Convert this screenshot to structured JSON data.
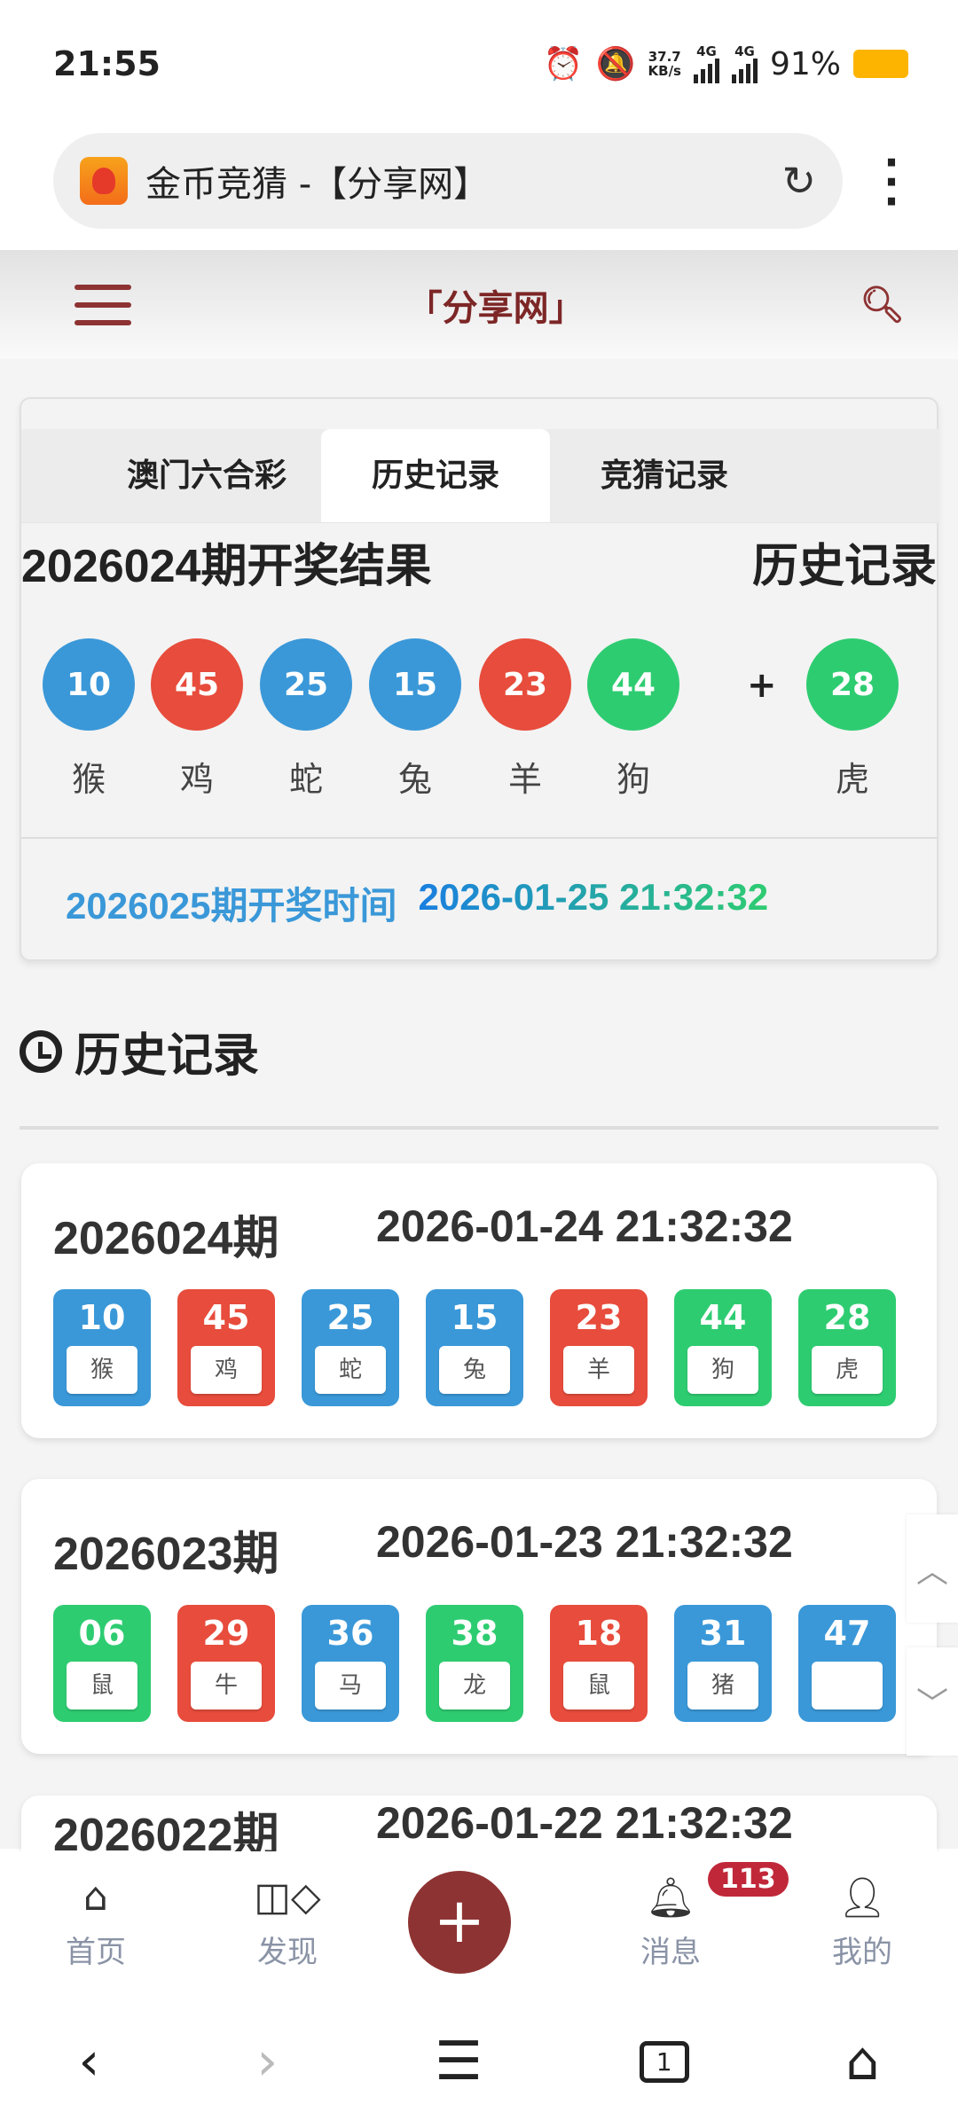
{
  "status": {
    "time": "21:55",
    "net_speed": "37.7",
    "net_unit": "KB/s",
    "sig1": "4G",
    "sig2": "4G",
    "battery": "91%"
  },
  "browser": {
    "title": "金币竞猜 -【分享网】"
  },
  "site": {
    "title": "「分享网」"
  },
  "tabs": [
    {
      "label": "澳门六合彩"
    },
    {
      "label": "历史记录",
      "active": true
    },
    {
      "label": "竞猜记录"
    }
  ],
  "latest": {
    "title": "2026024期开奖结果",
    "history_link": "历史记录",
    "plus": "+",
    "balls": [
      {
        "num": "10",
        "zodiac": "猴",
        "color": "#3a98d8"
      },
      {
        "num": "45",
        "zodiac": "鸡",
        "color": "#e74c3c"
      },
      {
        "num": "25",
        "zodiac": "蛇",
        "color": "#3a98d8"
      },
      {
        "num": "15",
        "zodiac": "兔",
        "color": "#3a98d8"
      },
      {
        "num": "23",
        "zodiac": "羊",
        "color": "#e74c3c"
      },
      {
        "num": "44",
        "zodiac": "狗",
        "color": "#2ecc71"
      },
      {
        "num": "28",
        "zodiac": "虎",
        "color": "#2ecc71"
      }
    ],
    "next_label": "2026025期开奖时间",
    "next_date": "2026-01-25 21:32:32"
  },
  "history": {
    "heading": "历史记录",
    "records": [
      {
        "period": "2026024期",
        "date": "2026-01-24 21:32:32",
        "balls": [
          {
            "num": "10",
            "zodiac": "猴",
            "color": "#3a98d8"
          },
          {
            "num": "45",
            "zodiac": "鸡",
            "color": "#e74c3c"
          },
          {
            "num": "25",
            "zodiac": "蛇",
            "color": "#3a98d8"
          },
          {
            "num": "15",
            "zodiac": "兔",
            "color": "#3a98d8"
          },
          {
            "num": "23",
            "zodiac": "羊",
            "color": "#e74c3c"
          },
          {
            "num": "44",
            "zodiac": "狗",
            "color": "#2ecc71"
          },
          {
            "num": "28",
            "zodiac": "虎",
            "color": "#2ecc71"
          }
        ]
      },
      {
        "period": "2026023期",
        "date": "2026-01-23 21:32:32",
        "balls": [
          {
            "num": "06",
            "zodiac": "鼠",
            "color": "#2ecc71"
          },
          {
            "num": "29",
            "zodiac": "牛",
            "color": "#e74c3c"
          },
          {
            "num": "36",
            "zodiac": "马",
            "color": "#3a98d8"
          },
          {
            "num": "38",
            "zodiac": "龙",
            "color": "#2ecc71"
          },
          {
            "num": "18",
            "zodiac": "鼠",
            "color": "#e74c3c"
          },
          {
            "num": "31",
            "zodiac": "猪",
            "color": "#3a98d8"
          },
          {
            "num": "47",
            "zodiac": "",
            "color": "#3a98d8"
          }
        ]
      },
      {
        "period": "2026022期",
        "date": "2026-01-22 21:32:32",
        "balls": []
      }
    ]
  },
  "nav": [
    {
      "label": "首页",
      "icon": "home-icon"
    },
    {
      "label": "发现",
      "icon": "discover-icon"
    },
    {
      "label": "",
      "icon": "plus-icon"
    },
    {
      "label": "消息",
      "icon": "bell-icon",
      "badge": "113"
    },
    {
      "label": "我的",
      "icon": "user-icon"
    }
  ],
  "sysnav": {
    "tabs_count": "1"
  }
}
